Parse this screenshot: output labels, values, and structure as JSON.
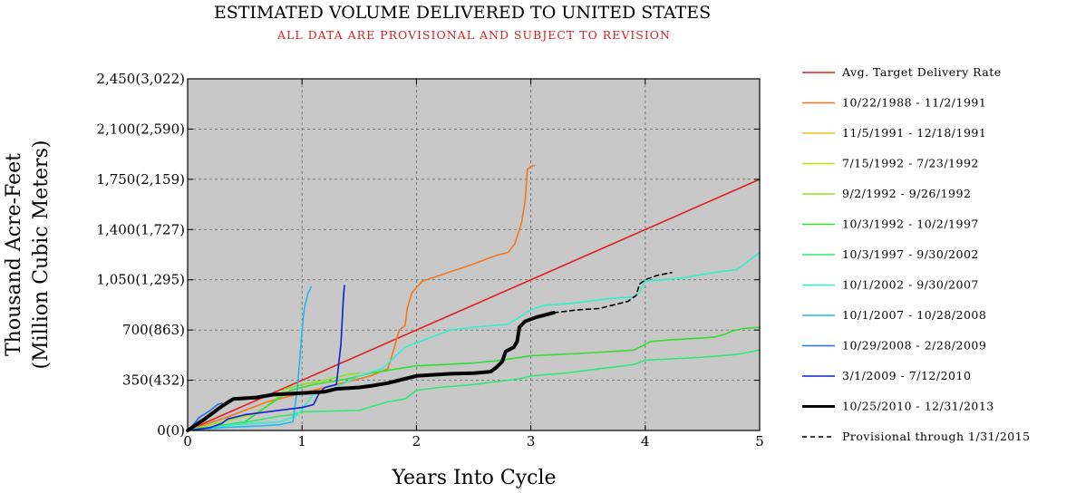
{
  "chart_data": {
    "type": "line",
    "title": "ESTIMATED VOLUME DELIVERED TO UNITED STATES",
    "subtitle": "ALL DATA ARE PROVISIONAL AND SUBJECT TO REVISION",
    "xlabel": "Years Into Cycle",
    "ylabel_line1": "Thousand Acre-Feet",
    "ylabel_line2": "(Million Cubic Meters)",
    "xlim": [
      0,
      5
    ],
    "ylim": [
      0,
      2450
    ],
    "x_ticks": [
      0,
      1,
      2,
      3,
      4,
      5
    ],
    "x_tick_labels": [
      "0",
      "1",
      "2",
      "3",
      "4",
      "5"
    ],
    "y_ticks": [
      0,
      350,
      700,
      1050,
      1400,
      1750,
      2100,
      2450
    ],
    "y_tick_labels": [
      "0(0)",
      "350(432)",
      "700(863)",
      "1,050(1,295)",
      "1,400(1,727)",
      "1,750(2,159)",
      "2,100(2,590)",
      "2,450(3,022)"
    ],
    "grid": true,
    "legend_position": "right-outside",
    "plot_background": "#c8c8c8",
    "series": [
      {
        "name": "Avg. Target Delivery Rate",
        "color": "#e02020",
        "width": 1.6,
        "dash": "",
        "points": [
          [
            0,
            0
          ],
          [
            5,
            1750
          ]
        ]
      },
      {
        "name": "10/22/1988 - 11/2/1991",
        "color": "#f07820",
        "width": 1.6,
        "dash": "",
        "points": [
          [
            0,
            0
          ],
          [
            0.3,
            80
          ],
          [
            0.7,
            200
          ],
          [
            1.0,
            260
          ],
          [
            1.3,
            320
          ],
          [
            1.6,
            380
          ],
          [
            1.75,
            430
          ],
          [
            1.8,
            560
          ],
          [
            1.85,
            700
          ],
          [
            1.9,
            730
          ],
          [
            1.92,
            850
          ],
          [
            1.96,
            960
          ],
          [
            2.05,
            1040
          ],
          [
            2.2,
            1080
          ],
          [
            2.5,
            1160
          ],
          [
            2.7,
            1220
          ],
          [
            2.8,
            1240
          ],
          [
            2.86,
            1300
          ],
          [
            2.92,
            1450
          ],
          [
            2.95,
            1600
          ],
          [
            2.97,
            1820
          ],
          [
            3.0,
            1840
          ],
          [
            3.03,
            1845
          ]
        ]
      },
      {
        "name": "11/5/1991 - 12/18/1991",
        "color": "#f0c010",
        "width": 1.6,
        "dash": "",
        "points": [
          [
            0,
            0
          ],
          [
            0.04,
            8
          ]
        ]
      },
      {
        "name": "7/15/1992 - 7/23/1992",
        "color": "#c8e010",
        "width": 1.6,
        "dash": "",
        "points": [
          [
            0,
            0
          ],
          [
            0.02,
            5
          ]
        ]
      },
      {
        "name": "9/2/1992 - 9/26/1992",
        "color": "#90e020",
        "width": 1.6,
        "dash": "",
        "points": [
          [
            0,
            0
          ],
          [
            0.3,
            60
          ],
          [
            0.6,
            120
          ],
          [
            0.75,
            200
          ],
          [
            0.85,
            290
          ],
          [
            1.0,
            320
          ],
          [
            1.2,
            350
          ],
          [
            1.4,
            390
          ],
          [
            1.5,
            400
          ]
        ]
      },
      {
        "name": "10/3/1992 - 10/2/1997",
        "color": "#30e030",
        "width": 1.6,
        "dash": "",
        "points": [
          [
            0,
            0
          ],
          [
            0.5,
            60
          ],
          [
            0.75,
            200
          ],
          [
            0.9,
            280
          ],
          [
            1.1,
            320
          ],
          [
            1.4,
            360
          ],
          [
            1.6,
            400
          ],
          [
            2.0,
            450
          ],
          [
            2.5,
            470
          ],
          [
            2.75,
            490
          ],
          [
            3.0,
            520
          ],
          [
            3.5,
            540
          ],
          [
            3.9,
            560
          ],
          [
            4.0,
            600
          ],
          [
            4.05,
            620
          ],
          [
            4.2,
            630
          ],
          [
            4.6,
            650
          ],
          [
            4.7,
            670
          ],
          [
            4.75,
            690
          ],
          [
            4.85,
            710
          ],
          [
            5.0,
            720
          ]
        ]
      },
      {
        "name": "10/3/1997 - 9/30/2002",
        "color": "#30e870",
        "width": 1.6,
        "dash": "",
        "points": [
          [
            0,
            0
          ],
          [
            0.3,
            30
          ],
          [
            0.6,
            70
          ],
          [
            0.8,
            100
          ],
          [
            0.92,
            110
          ],
          [
            1.0,
            130
          ],
          [
            1.5,
            140
          ],
          [
            1.75,
            200
          ],
          [
            1.9,
            220
          ],
          [
            2.0,
            280
          ],
          [
            2.2,
            300
          ],
          [
            2.5,
            320
          ],
          [
            2.9,
            360
          ],
          [
            3.0,
            380
          ],
          [
            3.3,
            400
          ],
          [
            3.6,
            430
          ],
          [
            3.9,
            460
          ],
          [
            4.0,
            490
          ],
          [
            4.5,
            510
          ],
          [
            4.8,
            530
          ],
          [
            5.0,
            560
          ]
        ]
      },
      {
        "name": "10/1/2002 - 9/30/2007",
        "color": "#30f0c8",
        "width": 1.6,
        "dash": "",
        "points": [
          [
            0,
            0
          ],
          [
            0.4,
            40
          ],
          [
            0.8,
            60
          ],
          [
            0.95,
            100
          ],
          [
            1.1,
            250
          ],
          [
            1.3,
            300
          ],
          [
            1.5,
            380
          ],
          [
            1.7,
            430
          ],
          [
            1.9,
            580
          ],
          [
            2.1,
            640
          ],
          [
            2.3,
            700
          ],
          [
            2.5,
            720
          ],
          [
            2.8,
            740
          ],
          [
            2.9,
            790
          ],
          [
            3.0,
            840
          ],
          [
            3.1,
            870
          ],
          [
            3.4,
            890
          ],
          [
            3.7,
            920
          ],
          [
            3.9,
            930
          ],
          [
            3.95,
            960
          ],
          [
            4.0,
            1040
          ],
          [
            4.3,
            1060
          ],
          [
            4.6,
            1100
          ],
          [
            4.8,
            1120
          ],
          [
            4.9,
            1180
          ],
          [
            5.0,
            1240
          ]
        ]
      },
      {
        "name": "10/1/2007 - 10/28/2008",
        "color": "#20b8f0",
        "width": 1.6,
        "dash": "",
        "points": [
          [
            0,
            0
          ],
          [
            0.3,
            20
          ],
          [
            0.6,
            30
          ],
          [
            0.8,
            40
          ],
          [
            0.92,
            60
          ],
          [
            0.96,
            300
          ],
          [
            0.98,
            500
          ],
          [
            1.0,
            700
          ],
          [
            1.02,
            850
          ],
          [
            1.05,
            950
          ],
          [
            1.08,
            1000
          ]
        ]
      },
      {
        "name": "10/29/2008 - 2/28/2009",
        "color": "#2070f0",
        "width": 1.6,
        "dash": "",
        "points": [
          [
            0,
            0
          ],
          [
            0.05,
            40
          ],
          [
            0.1,
            90
          ],
          [
            0.2,
            140
          ],
          [
            0.26,
            180
          ],
          [
            0.3,
            190
          ]
        ]
      },
      {
        "name": "3/1/2009 - 7/12/2010",
        "color": "#1020d0",
        "width": 1.6,
        "dash": "",
        "points": [
          [
            0,
            0
          ],
          [
            0.2,
            20
          ],
          [
            0.3,
            50
          ],
          [
            0.35,
            80
          ],
          [
            0.5,
            110
          ],
          [
            0.7,
            130
          ],
          [
            0.9,
            150
          ],
          [
            1.0,
            160
          ],
          [
            1.1,
            180
          ],
          [
            1.15,
            260
          ],
          [
            1.2,
            300
          ],
          [
            1.3,
            320
          ],
          [
            1.34,
            600
          ],
          [
            1.36,
            900
          ],
          [
            1.37,
            1010
          ]
        ]
      },
      {
        "name": "10/25/2010 - 12/31/2013",
        "color": "#000000",
        "width": 4,
        "dash": "",
        "points": [
          [
            0,
            0
          ],
          [
            0.15,
            80
          ],
          [
            0.3,
            170
          ],
          [
            0.4,
            220
          ],
          [
            0.6,
            230
          ],
          [
            0.75,
            250
          ],
          [
            1.0,
            260
          ],
          [
            1.2,
            270
          ],
          [
            1.3,
            290
          ],
          [
            1.5,
            300
          ],
          [
            1.6,
            310
          ],
          [
            1.75,
            330
          ],
          [
            1.9,
            360
          ],
          [
            2.0,
            380
          ],
          [
            2.3,
            395
          ],
          [
            2.5,
            400
          ],
          [
            2.65,
            410
          ],
          [
            2.7,
            440
          ],
          [
            2.75,
            480
          ],
          [
            2.78,
            550
          ],
          [
            2.85,
            580
          ],
          [
            2.88,
            620
          ],
          [
            2.9,
            720
          ],
          [
            2.95,
            760
          ],
          [
            3.05,
            790
          ],
          [
            3.15,
            810
          ],
          [
            3.2,
            820
          ]
        ]
      },
      {
        "name": "Provisional through 1/31/2015",
        "color": "#000000",
        "width": 1.6,
        "dash": "5,4",
        "points": [
          [
            3.2,
            820
          ],
          [
            3.4,
            840
          ],
          [
            3.6,
            850
          ],
          [
            3.7,
            870
          ],
          [
            3.85,
            900
          ],
          [
            3.92,
            940
          ],
          [
            3.95,
            1020
          ],
          [
            4.0,
            1050
          ],
          [
            4.1,
            1080
          ],
          [
            4.23,
            1100
          ]
        ]
      }
    ]
  }
}
